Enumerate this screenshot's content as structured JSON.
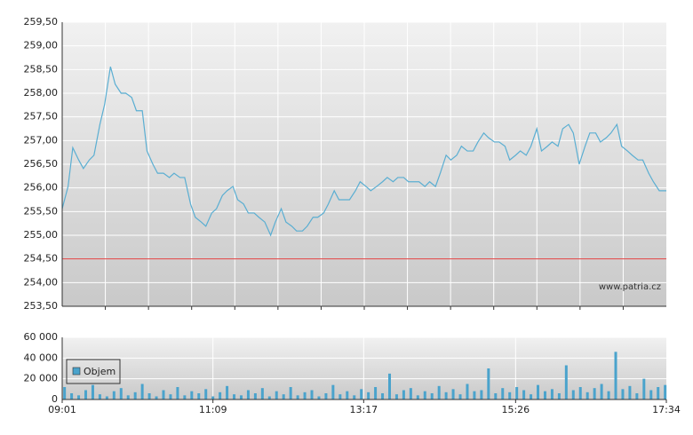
{
  "chart_data": [
    {
      "type": "line",
      "xlim": [
        541,
        1054
      ],
      "ylim": [
        253.5,
        259.5
      ],
      "yticks": [
        {
          "value": 253.5,
          "label": "253,50"
        },
        {
          "value": 254,
          "label": "254,00"
        },
        {
          "value": 254.5,
          "label": "254,50"
        },
        {
          "value": 255,
          "label": "255,00"
        },
        {
          "value": 255.5,
          "label": "255,50"
        },
        {
          "value": 256,
          "label": "256,00"
        },
        {
          "value": 256.5,
          "label": "256,50"
        },
        {
          "value": 257,
          "label": "257,00"
        },
        {
          "value": 257.5,
          "label": "257,50"
        },
        {
          "value": 258,
          "label": "258,00"
        },
        {
          "value": 258.5,
          "label": "258,50"
        },
        {
          "value": 259,
          "label": "259,00"
        },
        {
          "value": 259.5,
          "label": "259,50"
        }
      ],
      "grid": true,
      "reference_line": {
        "value": 254.5,
        "color": "#e03c3c"
      },
      "watermark": "www.patria.cz",
      "series": [
        {
          "color": "#5aaed2",
          "x": [
            541,
            546,
            550,
            555,
            559,
            564,
            568,
            573,
            577,
            582,
            586,
            591,
            595,
            600,
            604,
            609,
            613,
            618,
            622,
            627,
            632,
            636,
            641,
            645,
            650,
            654,
            659,
            663,
            668,
            672,
            677,
            681,
            686,
            690,
            695,
            699,
            704,
            708,
            713,
            718,
            722,
            727,
            731,
            736,
            740,
            745,
            749,
            754,
            758,
            763,
            767,
            772,
            776,
            781,
            785,
            790,
            794,
            799,
            803,
            808,
            813,
            817,
            822,
            826,
            831,
            835,
            840,
            844,
            849,
            853,
            858,
            862,
            867,
            871,
            876,
            880,
            885,
            890,
            894,
            899,
            903,
            908,
            912,
            917,
            921,
            926,
            930,
            935,
            939,
            944,
            948,
            953,
            957,
            962,
            966,
            971,
            975,
            980,
            985,
            989,
            994,
            998,
            1003,
            1007,
            1012,
            1016,
            1021,
            1025,
            1030,
            1034,
            1039,
            1043,
            1048,
            1052,
            1054
          ],
          "values": [
            255.56,
            256.03,
            256.85,
            256.59,
            256.41,
            256.59,
            256.69,
            257.34,
            257.76,
            258.56,
            258.19,
            258.0,
            258.0,
            257.91,
            257.63,
            257.63,
            256.78,
            256.5,
            256.31,
            256.31,
            256.22,
            256.31,
            256.22,
            256.22,
            255.66,
            255.38,
            255.28,
            255.19,
            255.47,
            255.56,
            255.84,
            255.94,
            256.03,
            255.75,
            255.66,
            255.47,
            255.47,
            255.38,
            255.28,
            255.0,
            255.28,
            255.56,
            255.28,
            255.19,
            255.09,
            255.09,
            255.19,
            255.38,
            255.38,
            255.47,
            255.66,
            255.94,
            255.75,
            255.75,
            255.75,
            255.94,
            256.13,
            256.03,
            255.94,
            256.03,
            256.13,
            256.22,
            256.13,
            256.22,
            256.22,
            256.13,
            256.13,
            256.13,
            256.03,
            256.13,
            256.03,
            256.31,
            256.69,
            256.59,
            256.69,
            256.88,
            256.78,
            256.78,
            256.97,
            257.16,
            257.06,
            256.97,
            256.97,
            256.88,
            256.59,
            256.69,
            256.78,
            256.69,
            256.88,
            257.25,
            256.78,
            256.88,
            256.97,
            256.88,
            257.25,
            257.34,
            257.16,
            256.5,
            256.88,
            257.16,
            257.16,
            256.97,
            257.06,
            257.16,
            257.34,
            256.88,
            256.78,
            256.69,
            256.59,
            256.59,
            256.31,
            256.13,
            255.94,
            255.94,
            255.94
          ]
        }
      ]
    },
    {
      "type": "bar",
      "xlim": [
        541,
        1054
      ],
      "xticks": [
        {
          "value": 541,
          "label": "09:01"
        },
        {
          "value": 669,
          "label": "11:09"
        },
        {
          "value": 797,
          "label": "13:17"
        },
        {
          "value": 926,
          "label": "15:26"
        },
        {
          "value": 1054,
          "label": "17:34"
        }
      ],
      "ylim": [
        0,
        60000
      ],
      "yticks": [
        0,
        {
          "value": 20000,
          "label": "20 000"
        },
        {
          "value": 40000,
          "label": "40 000"
        },
        {
          "value": 60000,
          "label": "60 000"
        }
      ],
      "grid": true,
      "legend": "top-left",
      "series": [
        {
          "name": "Objem",
          "color": "#4aa3cc",
          "x": [
            543,
            549,
            555,
            561,
            567,
            573,
            579,
            585,
            591,
            597,
            603,
            609,
            615,
            621,
            627,
            633,
            639,
            645,
            651,
            657,
            663,
            669,
            675,
            681,
            687,
            693,
            699,
            705,
            711,
            717,
            723,
            729,
            735,
            741,
            747,
            753,
            759,
            765,
            771,
            777,
            783,
            789,
            795,
            801,
            807,
            813,
            819,
            825,
            831,
            837,
            843,
            849,
            855,
            861,
            867,
            873,
            879,
            885,
            891,
            897,
            903,
            909,
            915,
            921,
            927,
            933,
            939,
            945,
            951,
            957,
            963,
            969,
            975,
            981,
            987,
            993,
            999,
            1005,
            1011,
            1017,
            1023,
            1029,
            1035,
            1041,
            1047,
            1053
          ],
          "values": [
            12000,
            6000,
            4000,
            9000,
            14000,
            5000,
            3000,
            8000,
            11000,
            4000,
            7000,
            15000,
            6000,
            3000,
            9000,
            5000,
            12000,
            4000,
            8000,
            6000,
            10000,
            3000,
            7000,
            13000,
            5000,
            4000,
            9000,
            6000,
            11000,
            3000,
            8000,
            5000,
            12000,
            4000,
            7000,
            9000,
            3000,
            6000,
            14000,
            5000,
            8000,
            4000,
            10000,
            7000,
            12000,
            6000,
            25000,
            5000,
            9000,
            11000,
            4000,
            8000,
            6000,
            13000,
            7000,
            10000,
            5000,
            15000,
            8000,
            9000,
            30000,
            6000,
            11000,
            7000,
            12000,
            9000,
            5000,
            14000,
            8000,
            10000,
            6000,
            33000,
            9000,
            12000,
            7000,
            11000,
            15000,
            8000,
            46000,
            10000,
            13000,
            6000,
            20000,
            9000,
            12000,
            14000
          ]
        }
      ]
    }
  ]
}
